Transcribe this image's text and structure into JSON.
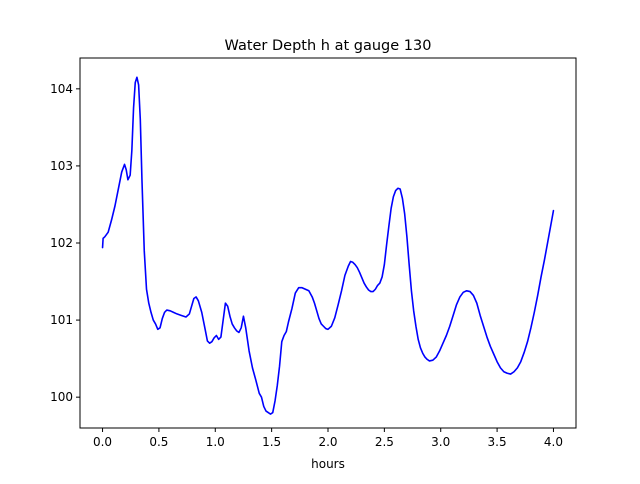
{
  "chart_data": {
    "type": "line",
    "title": "Water Depth h at gauge 130",
    "xlabel": "hours",
    "ylabel": "",
    "xlim": [
      -0.2,
      4.2
    ],
    "ylim": [
      99.6,
      104.4
    ],
    "xticks": [
      0.0,
      0.5,
      1.0,
      1.5,
      2.0,
      2.5,
      3.0,
      3.5,
      4.0
    ],
    "xtick_labels": [
      "0.0",
      "0.5",
      "1.0",
      "1.5",
      "2.0",
      "2.5",
      "3.0",
      "3.5",
      "4.0"
    ],
    "yticks": [
      100,
      101,
      102,
      103,
      104
    ],
    "ytick_labels": [
      "100",
      "101",
      "102",
      "103",
      "104"
    ],
    "grid": false,
    "legend": "none",
    "series": [
      {
        "color": "#0000ff",
        "x": [
          0.0,
          0.005,
          0.02,
          0.05,
          0.08,
          0.11,
          0.14,
          0.17,
          0.195,
          0.21,
          0.225,
          0.245,
          0.26,
          0.275,
          0.29,
          0.305,
          0.32,
          0.335,
          0.35,
          0.37,
          0.39,
          0.41,
          0.43,
          0.45,
          0.47,
          0.49,
          0.51,
          0.53,
          0.55,
          0.57,
          0.6,
          0.63,
          0.66,
          0.7,
          0.74,
          0.77,
          0.79,
          0.81,
          0.83,
          0.85,
          0.88,
          0.91,
          0.93,
          0.95,
          0.97,
          0.99,
          1.01,
          1.03,
          1.05,
          1.07,
          1.09,
          1.11,
          1.13,
          1.15,
          1.17,
          1.19,
          1.21,
          1.23,
          1.25,
          1.27,
          1.3,
          1.33,
          1.36,
          1.39,
          1.41,
          1.43,
          1.45,
          1.47,
          1.49,
          1.51,
          1.53,
          1.55,
          1.57,
          1.59,
          1.61,
          1.63,
          1.65,
          1.68,
          1.71,
          1.74,
          1.77,
          1.8,
          1.83,
          1.86,
          1.88,
          1.9,
          1.92,
          1.94,
          1.96,
          1.98,
          2.0,
          2.03,
          2.06,
          2.09,
          2.12,
          2.15,
          2.18,
          2.2,
          2.22,
          2.24,
          2.26,
          2.28,
          2.3,
          2.32,
          2.34,
          2.36,
          2.38,
          2.4,
          2.42,
          2.44,
          2.46,
          2.48,
          2.5,
          2.52,
          2.54,
          2.56,
          2.58,
          2.6,
          2.62,
          2.64,
          2.66,
          2.68,
          2.7,
          2.72,
          2.74,
          2.76,
          2.78,
          2.8,
          2.82,
          2.84,
          2.86,
          2.88,
          2.9,
          2.93,
          2.96,
          2.99,
          3.02,
          3.05,
          3.08,
          3.11,
          3.14,
          3.17,
          3.2,
          3.23,
          3.26,
          3.29,
          3.32,
          3.35,
          3.38,
          3.41,
          3.44,
          3.47,
          3.5,
          3.53,
          3.56,
          3.59,
          3.62,
          3.65,
          3.68,
          3.71,
          3.74,
          3.77,
          3.8,
          3.83,
          3.86,
          3.89,
          3.92,
          3.95,
          3.98,
          4.0
        ],
        "y": [
          101.94,
          102.06,
          102.08,
          102.14,
          102.3,
          102.48,
          102.7,
          102.92,
          103.02,
          102.95,
          102.82,
          102.88,
          103.2,
          103.75,
          104.08,
          104.15,
          104.05,
          103.6,
          102.8,
          101.9,
          101.4,
          101.22,
          101.1,
          101.0,
          100.95,
          100.88,
          100.9,
          101.02,
          101.1,
          101.13,
          101.12,
          101.1,
          101.08,
          101.06,
          101.04,
          101.08,
          101.18,
          101.28,
          101.3,
          101.25,
          101.1,
          100.88,
          100.73,
          100.7,
          100.72,
          100.77,
          100.8,
          100.75,
          100.78,
          101.0,
          101.22,
          101.18,
          101.05,
          100.95,
          100.9,
          100.86,
          100.84,
          100.9,
          101.05,
          100.9,
          100.6,
          100.38,
          100.22,
          100.05,
          100.0,
          99.88,
          99.82,
          99.8,
          99.78,
          99.8,
          99.95,
          100.15,
          100.4,
          100.72,
          100.8,
          100.85,
          100.98,
          101.15,
          101.35,
          101.42,
          101.42,
          101.4,
          101.38,
          101.3,
          101.22,
          101.12,
          101.02,
          100.95,
          100.92,
          100.89,
          100.88,
          100.92,
          101.03,
          101.2,
          101.38,
          101.58,
          101.7,
          101.76,
          101.75,
          101.72,
          101.68,
          101.62,
          101.55,
          101.48,
          101.43,
          101.39,
          101.37,
          101.37,
          101.4,
          101.45,
          101.48,
          101.56,
          101.72,
          101.98,
          102.22,
          102.45,
          102.6,
          102.68,
          102.71,
          102.7,
          102.58,
          102.38,
          102.08,
          101.72,
          101.38,
          101.12,
          100.92,
          100.75,
          100.64,
          100.57,
          100.52,
          100.49,
          100.47,
          100.48,
          100.52,
          100.6,
          100.7,
          100.8,
          100.92,
          101.06,
          101.2,
          101.3,
          101.36,
          101.38,
          101.37,
          101.32,
          101.22,
          101.06,
          100.92,
          100.78,
          100.66,
          100.56,
          100.46,
          100.38,
          100.33,
          100.31,
          100.3,
          100.33,
          100.38,
          100.46,
          100.58,
          100.72,
          100.9,
          101.1,
          101.32,
          101.56,
          101.78,
          102.02,
          102.26,
          102.42
        ]
      }
    ]
  }
}
